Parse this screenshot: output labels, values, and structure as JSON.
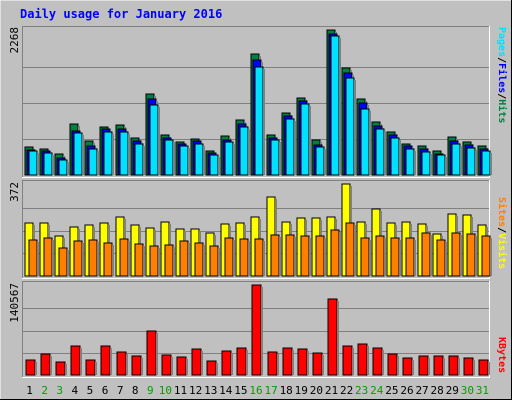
{
  "title": "Daily usage for January 2016",
  "colors": {
    "background": "#c0c0c0",
    "title": "#0000ff",
    "hits": "#008040",
    "files": "#0000ff",
    "pages": "#00e0ff",
    "visits": "#ffff00",
    "sites": "#ff8000",
    "kbytes": "#ff0000",
    "weekend_day": "#00a000",
    "weekday": "#000000"
  },
  "chart_data": [
    {
      "type": "bar",
      "name": "hits-files-pages",
      "scale_label": "2268",
      "ylim": [
        0,
        2268
      ],
      "grid": true,
      "legend": [
        "Pages",
        "/",
        "Files",
        "/",
        "Hits"
      ],
      "categories": [
        "1",
        "2",
        "3",
        "4",
        "5",
        "6",
        "7",
        "8",
        "9",
        "10",
        "11",
        "12",
        "13",
        "14",
        "15",
        "16",
        "17",
        "18",
        "19",
        "20",
        "21",
        "22",
        "23",
        "24",
        "25",
        "26",
        "27",
        "28",
        "29",
        "30",
        "31"
      ],
      "series": [
        {
          "name": "Hits",
          "values": [
            445,
            410,
            330,
            800,
            530,
            755,
            780,
            575,
            1270,
            620,
            515,
            570,
            375,
            605,
            860,
            1890,
            620,
            970,
            1200,
            550,
            2268,
            1680,
            1190,
            830,
            675,
            485,
            450,
            375,
            590,
            510,
            460
          ]
        },
        {
          "name": "Files",
          "values": [
            395,
            380,
            265,
            695,
            460,
            715,
            725,
            525,
            1185,
            580,
            485,
            525,
            345,
            555,
            790,
            1800,
            580,
            925,
            1155,
            470,
            2210,
            1600,
            1125,
            765,
            620,
            450,
            405,
            335,
            530,
            465,
            400
          ]
        },
        {
          "name": "Pages",
          "values": [
            370,
            350,
            240,
            650,
            410,
            665,
            670,
            490,
            1090,
            545,
            450,
            490,
            315,
            515,
            750,
            1690,
            545,
            875,
            1110,
            440,
            2170,
            1520,
            1040,
            720,
            580,
            410,
            365,
            310,
            490,
            420,
            370
          ]
        }
      ]
    },
    {
      "type": "bar",
      "name": "visits-sites",
      "scale_label": "372",
      "ylim": [
        0,
        372
      ],
      "grid": true,
      "legend": [
        "Sites",
        "/",
        "Visits"
      ],
      "categories": [
        "1",
        "2",
        "3",
        "4",
        "5",
        "6",
        "7",
        "8",
        "9",
        "10",
        "11",
        "12",
        "13",
        "14",
        "15",
        "16",
        "17",
        "18",
        "19",
        "20",
        "21",
        "22",
        "23",
        "24",
        "25",
        "26",
        "27",
        "28",
        "29",
        "30",
        "31"
      ],
      "series": [
        {
          "name": "Visits",
          "values": [
            215,
            215,
            160,
            200,
            205,
            215,
            240,
            205,
            195,
            220,
            190,
            190,
            175,
            210,
            215,
            240,
            320,
            220,
            235,
            235,
            240,
            372,
            220,
            270,
            215,
            220,
            210,
            170,
            250,
            245,
            205
          ]
        },
        {
          "name": "Sites",
          "values": [
            145,
            155,
            115,
            140,
            145,
            135,
            150,
            130,
            120,
            125,
            140,
            135,
            120,
            155,
            150,
            150,
            165,
            165,
            160,
            160,
            185,
            215,
            155,
            160,
            155,
            155,
            175,
            145,
            175,
            170,
            160
          ]
        }
      ]
    },
    {
      "type": "bar",
      "name": "kbytes",
      "scale_label": "140567",
      "ylim": [
        0,
        140567
      ],
      "grid": true,
      "legend": [
        "KBytes"
      ],
      "categories": [
        "1",
        "2",
        "3",
        "4",
        "5",
        "6",
        "7",
        "8",
        "9",
        "10",
        "11",
        "12",
        "13",
        "14",
        "15",
        "16",
        "17",
        "18",
        "19",
        "20",
        "21",
        "22",
        "23",
        "24",
        "25",
        "26",
        "27",
        "28",
        "29",
        "30",
        "31"
      ],
      "series": [
        {
          "name": "KBytes",
          "values": [
            24000,
            33000,
            21000,
            46000,
            23000,
            45000,
            36000,
            29000,
            68000,
            32000,
            28000,
            40000,
            22000,
            37000,
            42000,
            140567,
            36000,
            42000,
            41000,
            35000,
            118000,
            45000,
            49000,
            42000,
            33000,
            26000,
            30000,
            29000,
            29000,
            27000,
            24000
          ]
        }
      ]
    }
  ],
  "days": [
    "1",
    "2",
    "3",
    "4",
    "5",
    "6",
    "7",
    "8",
    "9",
    "10",
    "11",
    "12",
    "13",
    "14",
    "15",
    "16",
    "17",
    "18",
    "19",
    "20",
    "21",
    "22",
    "23",
    "24",
    "25",
    "26",
    "27",
    "28",
    "29",
    "30",
    "31"
  ],
  "weekend_days": [
    "2",
    "3",
    "9",
    "10",
    "16",
    "17",
    "23",
    "24",
    "30",
    "31"
  ]
}
